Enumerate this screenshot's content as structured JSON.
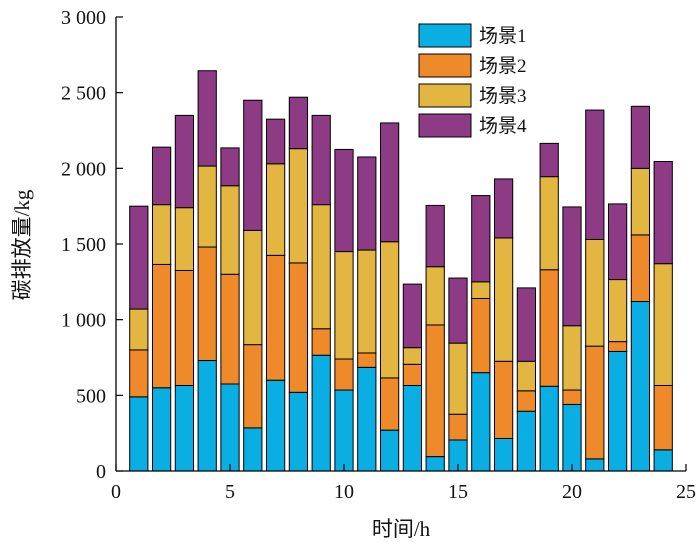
{
  "chart_data": {
    "type": "bar",
    "stacked": true,
    "title": "",
    "xlabel": "时间/h",
    "ylabel": "碳排放量/kg",
    "xlim": [
      0,
      25
    ],
    "ylim": [
      0,
      3000
    ],
    "xticks": [
      "0",
      "5",
      "10",
      "15",
      "20",
      "25"
    ],
    "yticks": [
      "0",
      "500",
      "1 000",
      "1 500",
      "2 000",
      "2 500",
      "3 000"
    ],
    "x": [
      1,
      2,
      3,
      4,
      5,
      6,
      7,
      8,
      9,
      10,
      11,
      12,
      13,
      14,
      15,
      16,
      17,
      18,
      19,
      20,
      21,
      22,
      23,
      24
    ],
    "legend_position": "top-right",
    "grid": false,
    "series": [
      {
        "name": "场景1",
        "color": "#0aaee3",
        "values": [
          490,
          550,
          565,
          730,
          575,
          285,
          600,
          520,
          765,
          535,
          685,
          270,
          565,
          95,
          205,
          650,
          215,
          395,
          560,
          440,
          80,
          790,
          1120,
          140
        ]
      },
      {
        "name": "场景2",
        "color": "#ef8a2a",
        "values": [
          310,
          815,
          760,
          750,
          725,
          550,
          825,
          855,
          175,
          205,
          95,
          345,
          140,
          870,
          170,
          490,
          510,
          135,
          770,
          95,
          745,
          65,
          440,
          425
        ]
      },
      {
        "name": "场景3",
        "color": "#e3b642",
        "values": [
          270,
          395,
          415,
          535,
          585,
          755,
          605,
          755,
          820,
          710,
          680,
          900,
          110,
          385,
          470,
          110,
          815,
          195,
          615,
          425,
          705,
          410,
          440,
          805
        ]
      },
      {
        "name": "场景4",
        "color": "#8e3b86",
        "values": [
          680,
          380,
          610,
          630,
          250,
          860,
          295,
          340,
          590,
          675,
          615,
          785,
          420,
          405,
          430,
          570,
          390,
          485,
          220,
          785,
          855,
          500,
          410,
          675
        ]
      }
    ]
  }
}
